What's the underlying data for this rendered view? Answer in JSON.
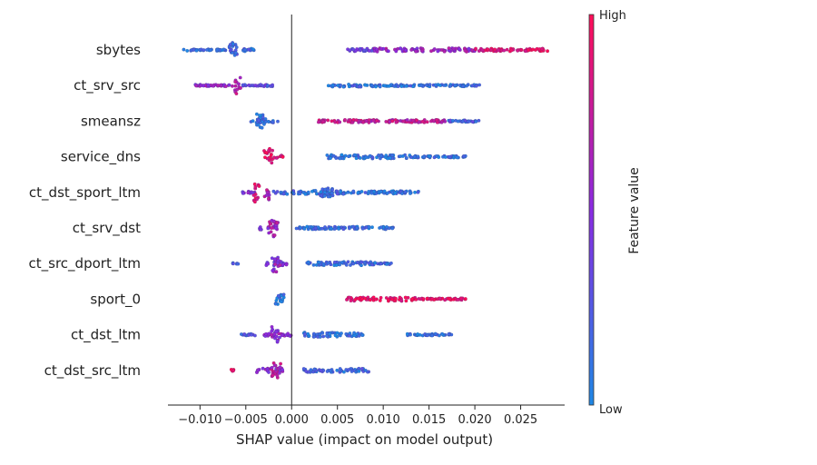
{
  "chart_data": {
    "type": "scatter",
    "subtype": "shap-beeswarm",
    "xlabel": "SHAP value (impact on model output)",
    "xlim": [
      -0.0135,
      0.0298
    ],
    "xticks": [
      -0.01,
      -0.005,
      0.0,
      0.005,
      0.01,
      0.015,
      0.02,
      0.025
    ],
    "xtick_labels": [
      "−0.010",
      "−0.005",
      "0.000",
      "0.005",
      "0.010",
      "0.015",
      "0.020",
      "0.025"
    ],
    "colorbar": {
      "title": "Feature value",
      "high_label": "High",
      "low_label": "Low",
      "low_color": "#1e88e5",
      "high_color": "#ff0d57"
    },
    "features": [
      {
        "name": "sbytes",
        "clusters": [
          {
            "x": [
              -0.0118,
              -0.0072
            ],
            "v": 0.12,
            "w": 2
          },
          {
            "x": [
              -0.0068,
              -0.0058
            ],
            "v": 0.15,
            "w": 16
          },
          {
            "x": [
              -0.0057,
              -0.004
            ],
            "v": 0.15,
            "w": 3
          },
          {
            "x": [
              0.006,
              0.009
            ],
            "v": 0.35,
            "w": 3
          },
          {
            "x": [
              0.009,
              0.02
            ],
            "v": 0.6,
            "w": 4
          },
          {
            "x": [
              0.02,
              0.028
            ],
            "v": 0.92,
            "w": 3
          }
        ]
      },
      {
        "name": "ct_srv_src",
        "clusters": [
          {
            "x": [
              -0.0105,
              -0.0062
            ],
            "v": 0.55,
            "w": 2
          },
          {
            "x": [
              -0.0062,
              -0.0055
            ],
            "v": 0.75,
            "w": 18
          },
          {
            "x": [
              -0.0055,
              -0.002
            ],
            "v": 0.3,
            "w": 2
          },
          {
            "x": [
              0.004,
              0.01
            ],
            "v": 0.12,
            "w": 3
          },
          {
            "x": [
              0.01,
              0.0205
            ],
            "v": 0.1,
            "w": 2
          }
        ]
      },
      {
        "name": "smeansz",
        "clusters": [
          {
            "x": [
              -0.0045,
              -0.0015
            ],
            "v": 0.1,
            "w": 4
          },
          {
            "x": [
              -0.0038,
              -0.0028
            ],
            "v": 0.12,
            "w": 16
          },
          {
            "x": [
              0.0027,
              0.008
            ],
            "v": 0.8,
            "w": 3
          },
          {
            "x": [
              0.008,
              0.017
            ],
            "v": 0.75,
            "w": 3
          },
          {
            "x": [
              0.017,
              0.0205
            ],
            "v": 0.2,
            "w": 2
          }
        ]
      },
      {
        "name": "service_dns",
        "clusters": [
          {
            "x": [
              -0.003,
              -0.002
            ],
            "v": 0.95,
            "w": 18
          },
          {
            "x": [
              -0.002,
              -0.0008
            ],
            "v": 0.92,
            "w": 3
          },
          {
            "x": [
              0.0038,
              0.013
            ],
            "v": 0.1,
            "w": 4
          },
          {
            "x": [
              0.013,
              0.019
            ],
            "v": 0.1,
            "w": 2
          }
        ]
      },
      {
        "name": "ct_dst_sport_ltm",
        "clusters": [
          {
            "x": [
              -0.0058,
              -0.004
            ],
            "v": 0.45,
            "w": 2
          },
          {
            "x": [
              -0.0042,
              -0.0035
            ],
            "v": 0.92,
            "w": 22
          },
          {
            "x": [
              -0.003,
              -0.0024
            ],
            "v": 0.7,
            "w": 20
          },
          {
            "x": [
              -0.002,
              0.006
            ],
            "v": 0.15,
            "w": 4
          },
          {
            "x": [
              0.003,
              0.0045
            ],
            "v": 0.12,
            "w": 10
          },
          {
            "x": [
              0.006,
              0.014
            ],
            "v": 0.1,
            "w": 3
          }
        ]
      },
      {
        "name": "ct_srv_dst",
        "clusters": [
          {
            "x": [
              -0.0035,
              -0.0015
            ],
            "v": 0.55,
            "w": 4
          },
          {
            "x": [
              -0.0025,
              -0.0015
            ],
            "v": 0.65,
            "w": 20
          },
          {
            "x": [
              0.0005,
              0.0115
            ],
            "v": 0.1,
            "w": 3
          }
        ]
      },
      {
        "name": "ct_src_dport_ltm",
        "clusters": [
          {
            "x": [
              -0.0065,
              -0.0058
            ],
            "v": 0.15,
            "w": 2
          },
          {
            "x": [
              -0.003,
              -0.0005
            ],
            "v": 0.45,
            "w": 4
          },
          {
            "x": [
              -0.0022,
              -0.0012
            ],
            "v": 0.55,
            "w": 18
          },
          {
            "x": [
              0.0015,
              0.009
            ],
            "v": 0.12,
            "w": 4
          },
          {
            "x": [
              0.009,
              0.011
            ],
            "v": 0.12,
            "w": 2
          }
        ]
      },
      {
        "name": "sport_0",
        "clusters": [
          {
            "x": [
              -0.0018,
              -0.0008
            ],
            "v": 0.1,
            "w": 14
          },
          {
            "x": [
              0.006,
              0.0135
            ],
            "v": 0.95,
            "w": 4
          },
          {
            "x": [
              0.0135,
              0.019
            ],
            "v": 0.95,
            "w": 2
          }
        ]
      },
      {
        "name": "ct_dst_ltm",
        "clusters": [
          {
            "x": [
              -0.0055,
              -0.004
            ],
            "v": 0.2,
            "w": 2
          },
          {
            "x": [
              -0.003,
              0.0
            ],
            "v": 0.55,
            "w": 3
          },
          {
            "x": [
              -0.0022,
              -0.0012
            ],
            "v": 0.55,
            "w": 18
          },
          {
            "x": [
              0.0012,
              0.008
            ],
            "v": 0.12,
            "w": 5
          },
          {
            "x": [
              0.0125,
              0.0175
            ],
            "v": 0.12,
            "w": 2
          }
        ]
      },
      {
        "name": "ct_dst_src_ltm",
        "clusters": [
          {
            "x": [
              -0.0068,
              -0.0062
            ],
            "v": 0.95,
            "w": 2
          },
          {
            "x": [
              -0.0038,
              -0.0008
            ],
            "v": 0.55,
            "w": 5
          },
          {
            "x": [
              -0.0022,
              -0.0012
            ],
            "v": 0.7,
            "w": 20
          },
          {
            "x": [
              0.0012,
              0.0085
            ],
            "v": 0.15,
            "w": 4
          }
        ]
      }
    ]
  }
}
